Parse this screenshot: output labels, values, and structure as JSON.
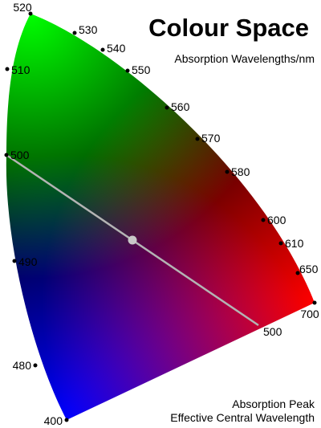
{
  "title": "Colour Space",
  "subtitle": "Absorption Wavelengths/nm",
  "wavelength_labels": [
    "520",
    "530",
    "540",
    "550",
    "560",
    "570",
    "580",
    "600",
    "610",
    "650",
    "700",
    "510",
    "500",
    "490",
    "480",
    "400"
  ],
  "line_label": "500",
  "footer": [
    "Absorption Peak",
    "Effective Central Wavelength"
  ]
}
